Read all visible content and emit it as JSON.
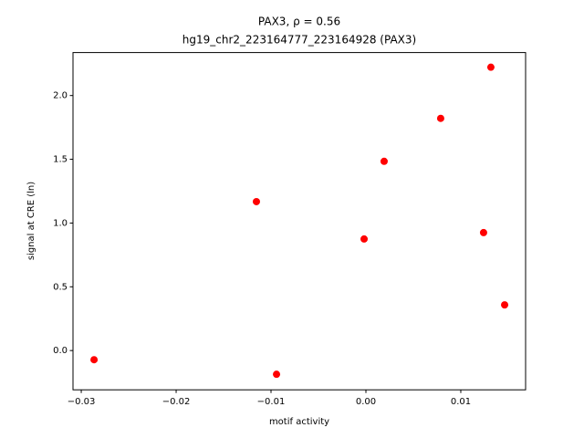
{
  "chart_data": {
    "type": "scatter",
    "title": "PAX3, ρ = 0.56",
    "subtitle": "hg19_chr2_223164777_223164928 (PAX3)",
    "xlabel": "motif activity",
    "ylabel": "signal at CRE (ln)",
    "color": "#ff0000",
    "x": [
      -0.02865,
      -0.00942,
      -0.01154,
      -0.00019,
      0.00192,
      0.00788,
      0.01317,
      0.0124,
      0.01462
    ],
    "values": [
      -0.072,
      -0.186,
      1.168,
      0.875,
      1.484,
      1.821,
      2.222,
      0.925,
      0.358
    ],
    "xlim": [
      -0.03087,
      0.01683
    ],
    "ylim": [
      -0.308,
      2.337
    ],
    "xticks": [
      {
        "value": -0.03,
        "label": "−0.03"
      },
      {
        "value": -0.02,
        "label": "−0.02"
      },
      {
        "value": -0.01,
        "label": "−0.01"
      },
      {
        "value": 0,
        "label": "0.00"
      },
      0.01
    ],
    "yticks": [
      {
        "value": 0,
        "label": "0.0"
      },
      0.5,
      {
        "value": 1,
        "label": "1.0"
      },
      1.5,
      {
        "value": 2,
        "label": "2.0"
      }
    ]
  }
}
